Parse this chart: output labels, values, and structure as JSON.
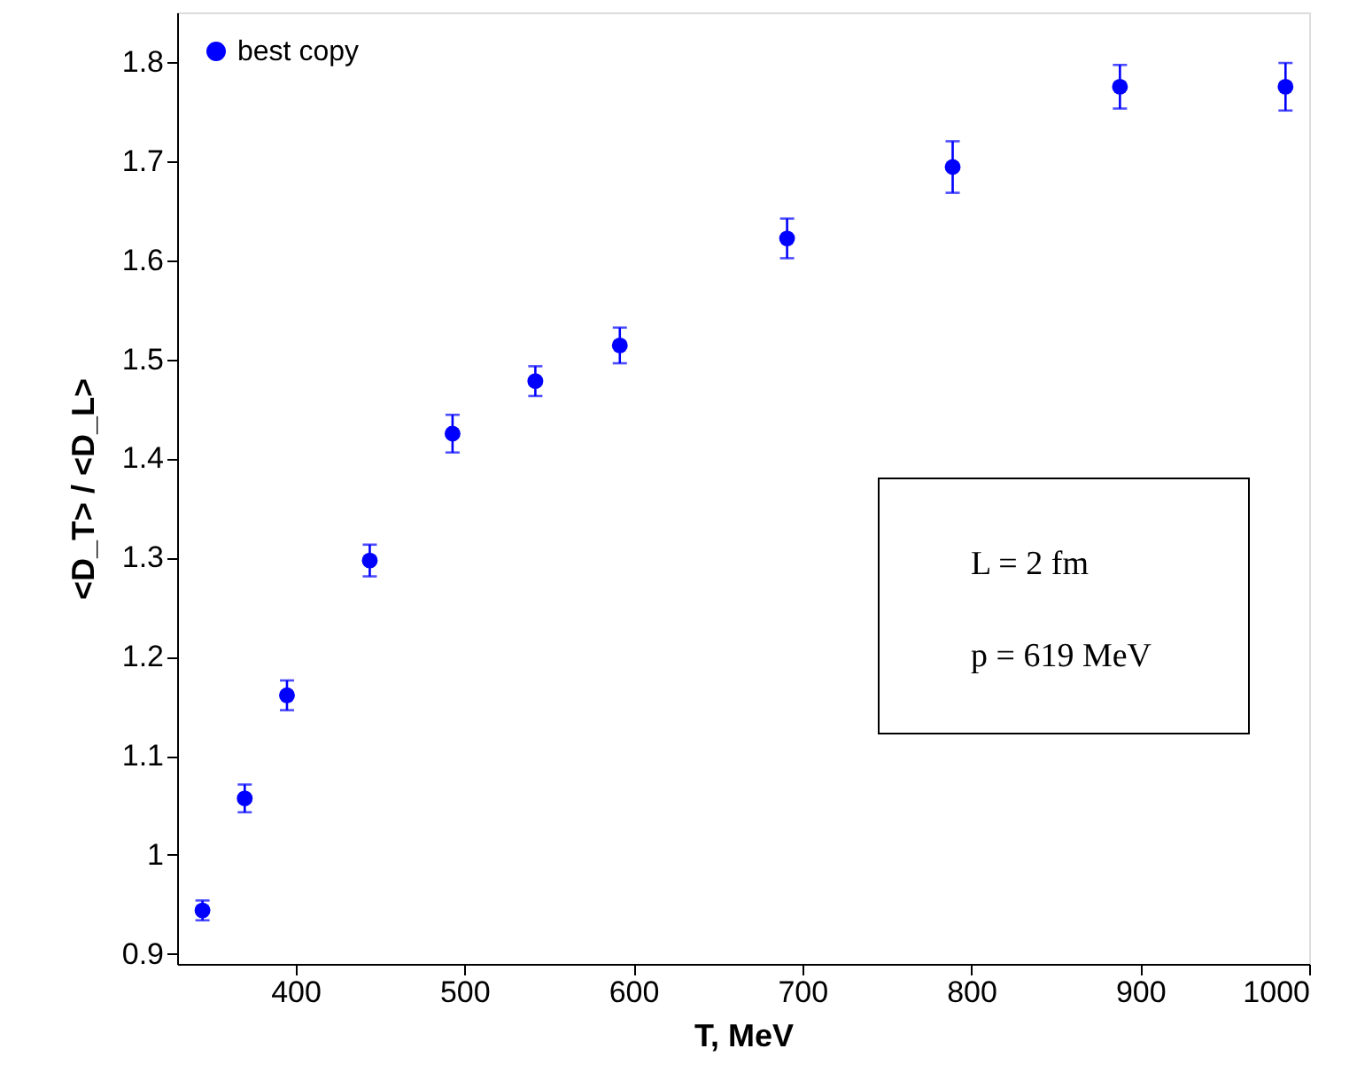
{
  "chart_data": {
    "type": "scatter",
    "xlabel": "T, MeV",
    "ylabel": "<D_T> / <D_L>",
    "x": [
      345,
      370,
      395,
      444,
      493,
      542,
      592,
      691,
      789,
      888,
      986
    ],
    "series": [
      {
        "name": "best copy",
        "color": "#0000ff",
        "values": [
          0.944,
          1.057,
          1.161,
          1.297,
          1.425,
          1.478,
          1.514,
          1.622,
          1.694,
          1.775,
          1.775
        ],
        "errors": [
          0.01,
          0.014,
          0.015,
          0.016,
          0.019,
          0.015,
          0.018,
          0.02,
          0.026,
          0.022,
          0.024
        ]
      }
    ],
    "xlim": [
      330,
      1000
    ],
    "xticks": [
      400,
      500,
      600,
      700,
      800,
      900,
      1000
    ],
    "ylim": [
      0.89,
      1.85
    ],
    "yticks": [
      0.9,
      1,
      1.1,
      1.2,
      1.3,
      1.4,
      1.5,
      1.6,
      1.7,
      1.8
    ],
    "annotations": [
      "L = 2 fm",
      "p = 619 MeV"
    ],
    "grid": false,
    "legend": "top left",
    "marker": "circle"
  }
}
